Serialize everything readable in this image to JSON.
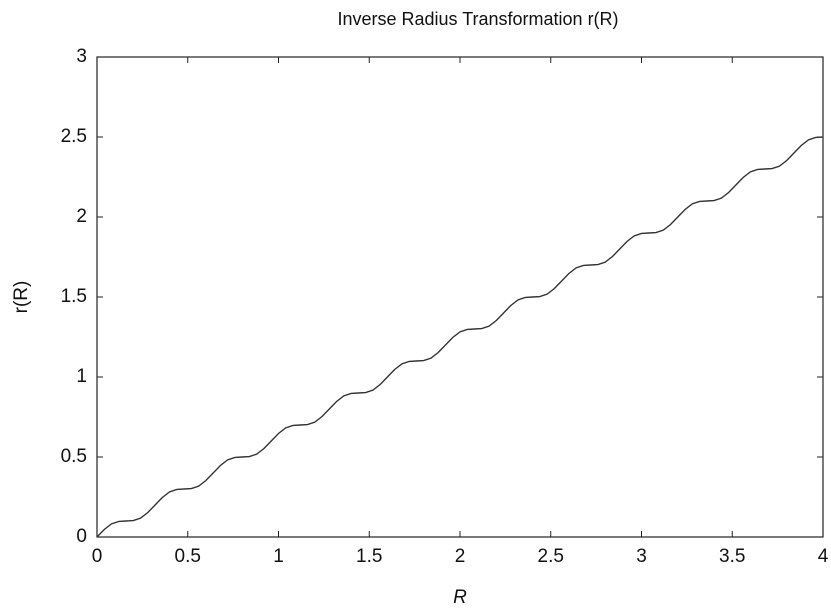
{
  "chart_data": {
    "type": "line",
    "title": "Inverse Radius Transformation r(R)",
    "xlabel": "R",
    "ylabel": "r(R)",
    "x": [
      0,
      0.04,
      0.08,
      0.12,
      0.16,
      0.2,
      0.24,
      0.28,
      0.32,
      0.36,
      0.4,
      0.44,
      0.48,
      0.52,
      0.56,
      0.6,
      0.64,
      0.68,
      0.72,
      0.76,
      0.8,
      0.84,
      0.88,
      0.92,
      0.96,
      1,
      1.04,
      1.08,
      1.12,
      1.16,
      1.2,
      1.24,
      1.28,
      1.32,
      1.36,
      1.4,
      1.44,
      1.48,
      1.52,
      1.56,
      1.6,
      1.64,
      1.68,
      1.72,
      1.76,
      1.8,
      1.84,
      1.88,
      1.92,
      1.96,
      2,
      2.04,
      2.08,
      2.12,
      2.16,
      2.2,
      2.24,
      2.28,
      2.32,
      2.36,
      2.4,
      2.44,
      2.48,
      2.52,
      2.56,
      2.6,
      2.64,
      2.68,
      2.72,
      2.76,
      2.8,
      2.84,
      2.88,
      2.92,
      2.96,
      3,
      3.04,
      3.08,
      3.12,
      3.16,
      3.2,
      3.24,
      3.28,
      3.32,
      3.36,
      3.4,
      3.44,
      3.48,
      3.52,
      3.56,
      3.6,
      3.64,
      3.68,
      3.72,
      3.76,
      3.8,
      3.84,
      3.88,
      3.92,
      3.96,
      4
    ],
    "series": [
      {
        "color": "#333333",
        "values": [
          0,
          0.047,
          0.082,
          0.097,
          0.1,
          0.103,
          0.118,
          0.153,
          0.2,
          0.247,
          0.282,
          0.297,
          0.3,
          0.303,
          0.318,
          0.353,
          0.4,
          0.447,
          0.482,
          0.497,
          0.5,
          0.503,
          0.518,
          0.553,
          0.6,
          0.647,
          0.682,
          0.697,
          0.7,
          0.703,
          0.718,
          0.753,
          0.8,
          0.847,
          0.882,
          0.897,
          0.9,
          0.903,
          0.918,
          0.953,
          1.0,
          1.047,
          1.082,
          1.097,
          1.1,
          1.103,
          1.118,
          1.153,
          1.2,
          1.247,
          1.282,
          1.297,
          1.3,
          1.303,
          1.318,
          1.353,
          1.4,
          1.447,
          1.482,
          1.497,
          1.5,
          1.503,
          1.518,
          1.553,
          1.6,
          1.647,
          1.682,
          1.697,
          1.7,
          1.703,
          1.718,
          1.753,
          1.8,
          1.847,
          1.882,
          1.897,
          1.9,
          1.903,
          1.918,
          1.953,
          2.0,
          2.047,
          2.082,
          2.097,
          2.1,
          2.103,
          2.118,
          2.153,
          2.2,
          2.247,
          2.282,
          2.297,
          2.3,
          2.303,
          2.318,
          2.353,
          2.4,
          2.447,
          2.482,
          2.497,
          2.5
        ]
      }
    ],
    "xlim": [
      0,
      4
    ],
    "xticks": [
      0,
      0.5,
      1,
      1.5,
      2,
      2.5,
      3,
      3.5,
      4
    ],
    "ylim": [
      0,
      3
    ],
    "yticks": [
      0,
      0.5,
      1,
      1.5,
      2,
      2.5,
      3
    ]
  }
}
